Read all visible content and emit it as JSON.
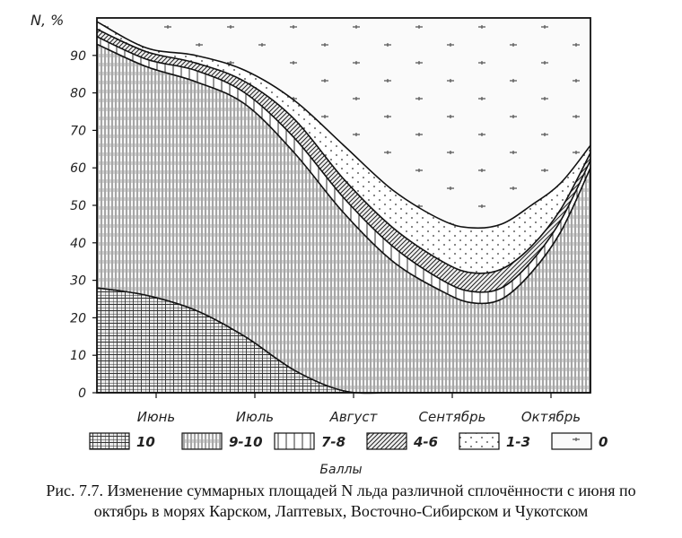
{
  "chart_data": {
    "type": "area",
    "ylabel": "N, %",
    "xlabel": "",
    "legend_title": "Баллы",
    "caption_lines": [
      "Рис. 7.7. Изменение суммарных площадей N льда различной сплочённости с июня по",
      "октябрь в морях Карском, Лаптевых, Восточно-Сибирском и Чукотском"
    ],
    "x_domain": [
      0,
      5
    ],
    "x_ticks": [
      {
        "x": 0.6,
        "label": "Июнь"
      },
      {
        "x": 1.6,
        "label": "Июль"
      },
      {
        "x": 2.6,
        "label": "Август"
      },
      {
        "x": 3.6,
        "label": "Сентябрь"
      },
      {
        "x": 4.6,
        "label": "Октябрь"
      }
    ],
    "y_ticks": [
      0,
      10,
      20,
      30,
      40,
      50,
      60,
      70,
      80,
      90
    ],
    "ylim": [
      0,
      100
    ],
    "legend": [
      {
        "label": "10",
        "pattern": "grid"
      },
      {
        "label": "9-10",
        "pattern": "vert-dense"
      },
      {
        "label": "7-8",
        "pattern": "vert-sparse"
      },
      {
        "label": "4-6",
        "pattern": "hatch"
      },
      {
        "label": "1-3",
        "pattern": "dots"
      },
      {
        "label": "0",
        "pattern": "dash"
      }
    ],
    "x": [
      0,
      0.5,
      1.0,
      1.5,
      2.0,
      2.5,
      3.0,
      3.5,
      3.8,
      4.1,
      4.4,
      4.7,
      5.0
    ],
    "cumulative_series": [
      {
        "name": "10",
        "values": [
          28,
          26,
          22,
          15,
          6,
          0.5,
          0,
          0,
          0,
          0,
          0,
          0,
          0
        ]
      },
      {
        "name": "9-10",
        "values": [
          93,
          87,
          83,
          77,
          64,
          48,
          35,
          27,
          24,
          25,
          32,
          43,
          60
        ]
      },
      {
        "name": "7-8",
        "values": [
          95,
          89,
          86,
          80,
          68,
          52,
          39,
          30,
          27,
          28,
          35,
          46,
          62
        ]
      },
      {
        "name": "4-6",
        "values": [
          97,
          91,
          88,
          83,
          73,
          57,
          44,
          35,
          32,
          33,
          39,
          49,
          64
        ]
      },
      {
        "name": "1-3",
        "values": [
          99,
          92,
          90,
          86,
          78,
          66,
          54,
          46,
          44,
          45,
          50,
          56,
          66
        ]
      }
    ],
    "total": 100,
    "grid": false
  }
}
